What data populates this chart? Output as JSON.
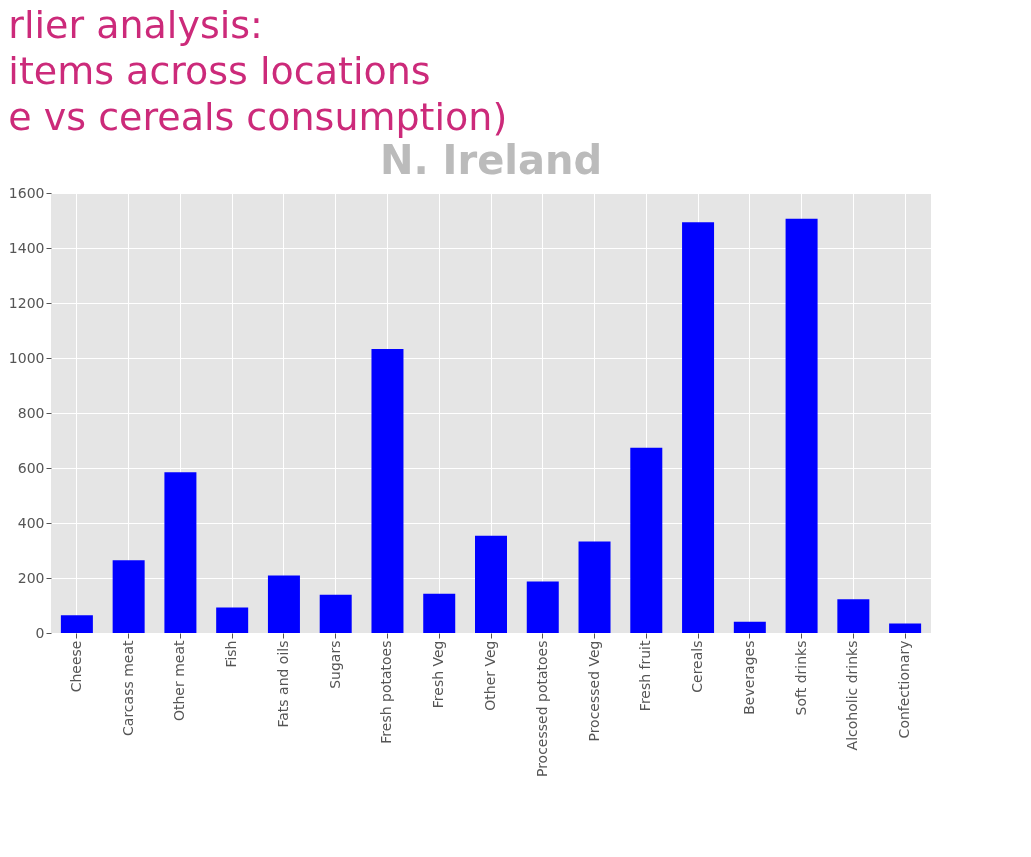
{
  "chart_data": {
    "type": "bar",
    "title": "N. Ireland",
    "annotations": [
      "rlier analysis:",
      "items across locations",
      "e vs cereals consumption)"
    ],
    "categories": [
      "Cheese",
      "Carcass meat",
      "Other meat",
      "Fish",
      "Fats and oils",
      "Sugars",
      "Fresh potatoes",
      "Fresh Veg",
      "Other Veg",
      "Processed potatoes",
      "Processed Veg",
      "Fresh fruit",
      "Cereals",
      "Beverages",
      "Soft drinks",
      "Alcoholic drinks",
      "Confectionary"
    ],
    "values": [
      65,
      265,
      585,
      93,
      209,
      139,
      1033,
      143,
      354,
      187,
      333,
      674,
      1494,
      41,
      1506,
      123,
      35
    ],
    "color": "#0000ff",
    "ylim": [
      0,
      1600
    ],
    "yticks": [
      0,
      200,
      400,
      600,
      800,
      1000,
      1200,
      1400,
      1600
    ],
    "grid": true
  }
}
